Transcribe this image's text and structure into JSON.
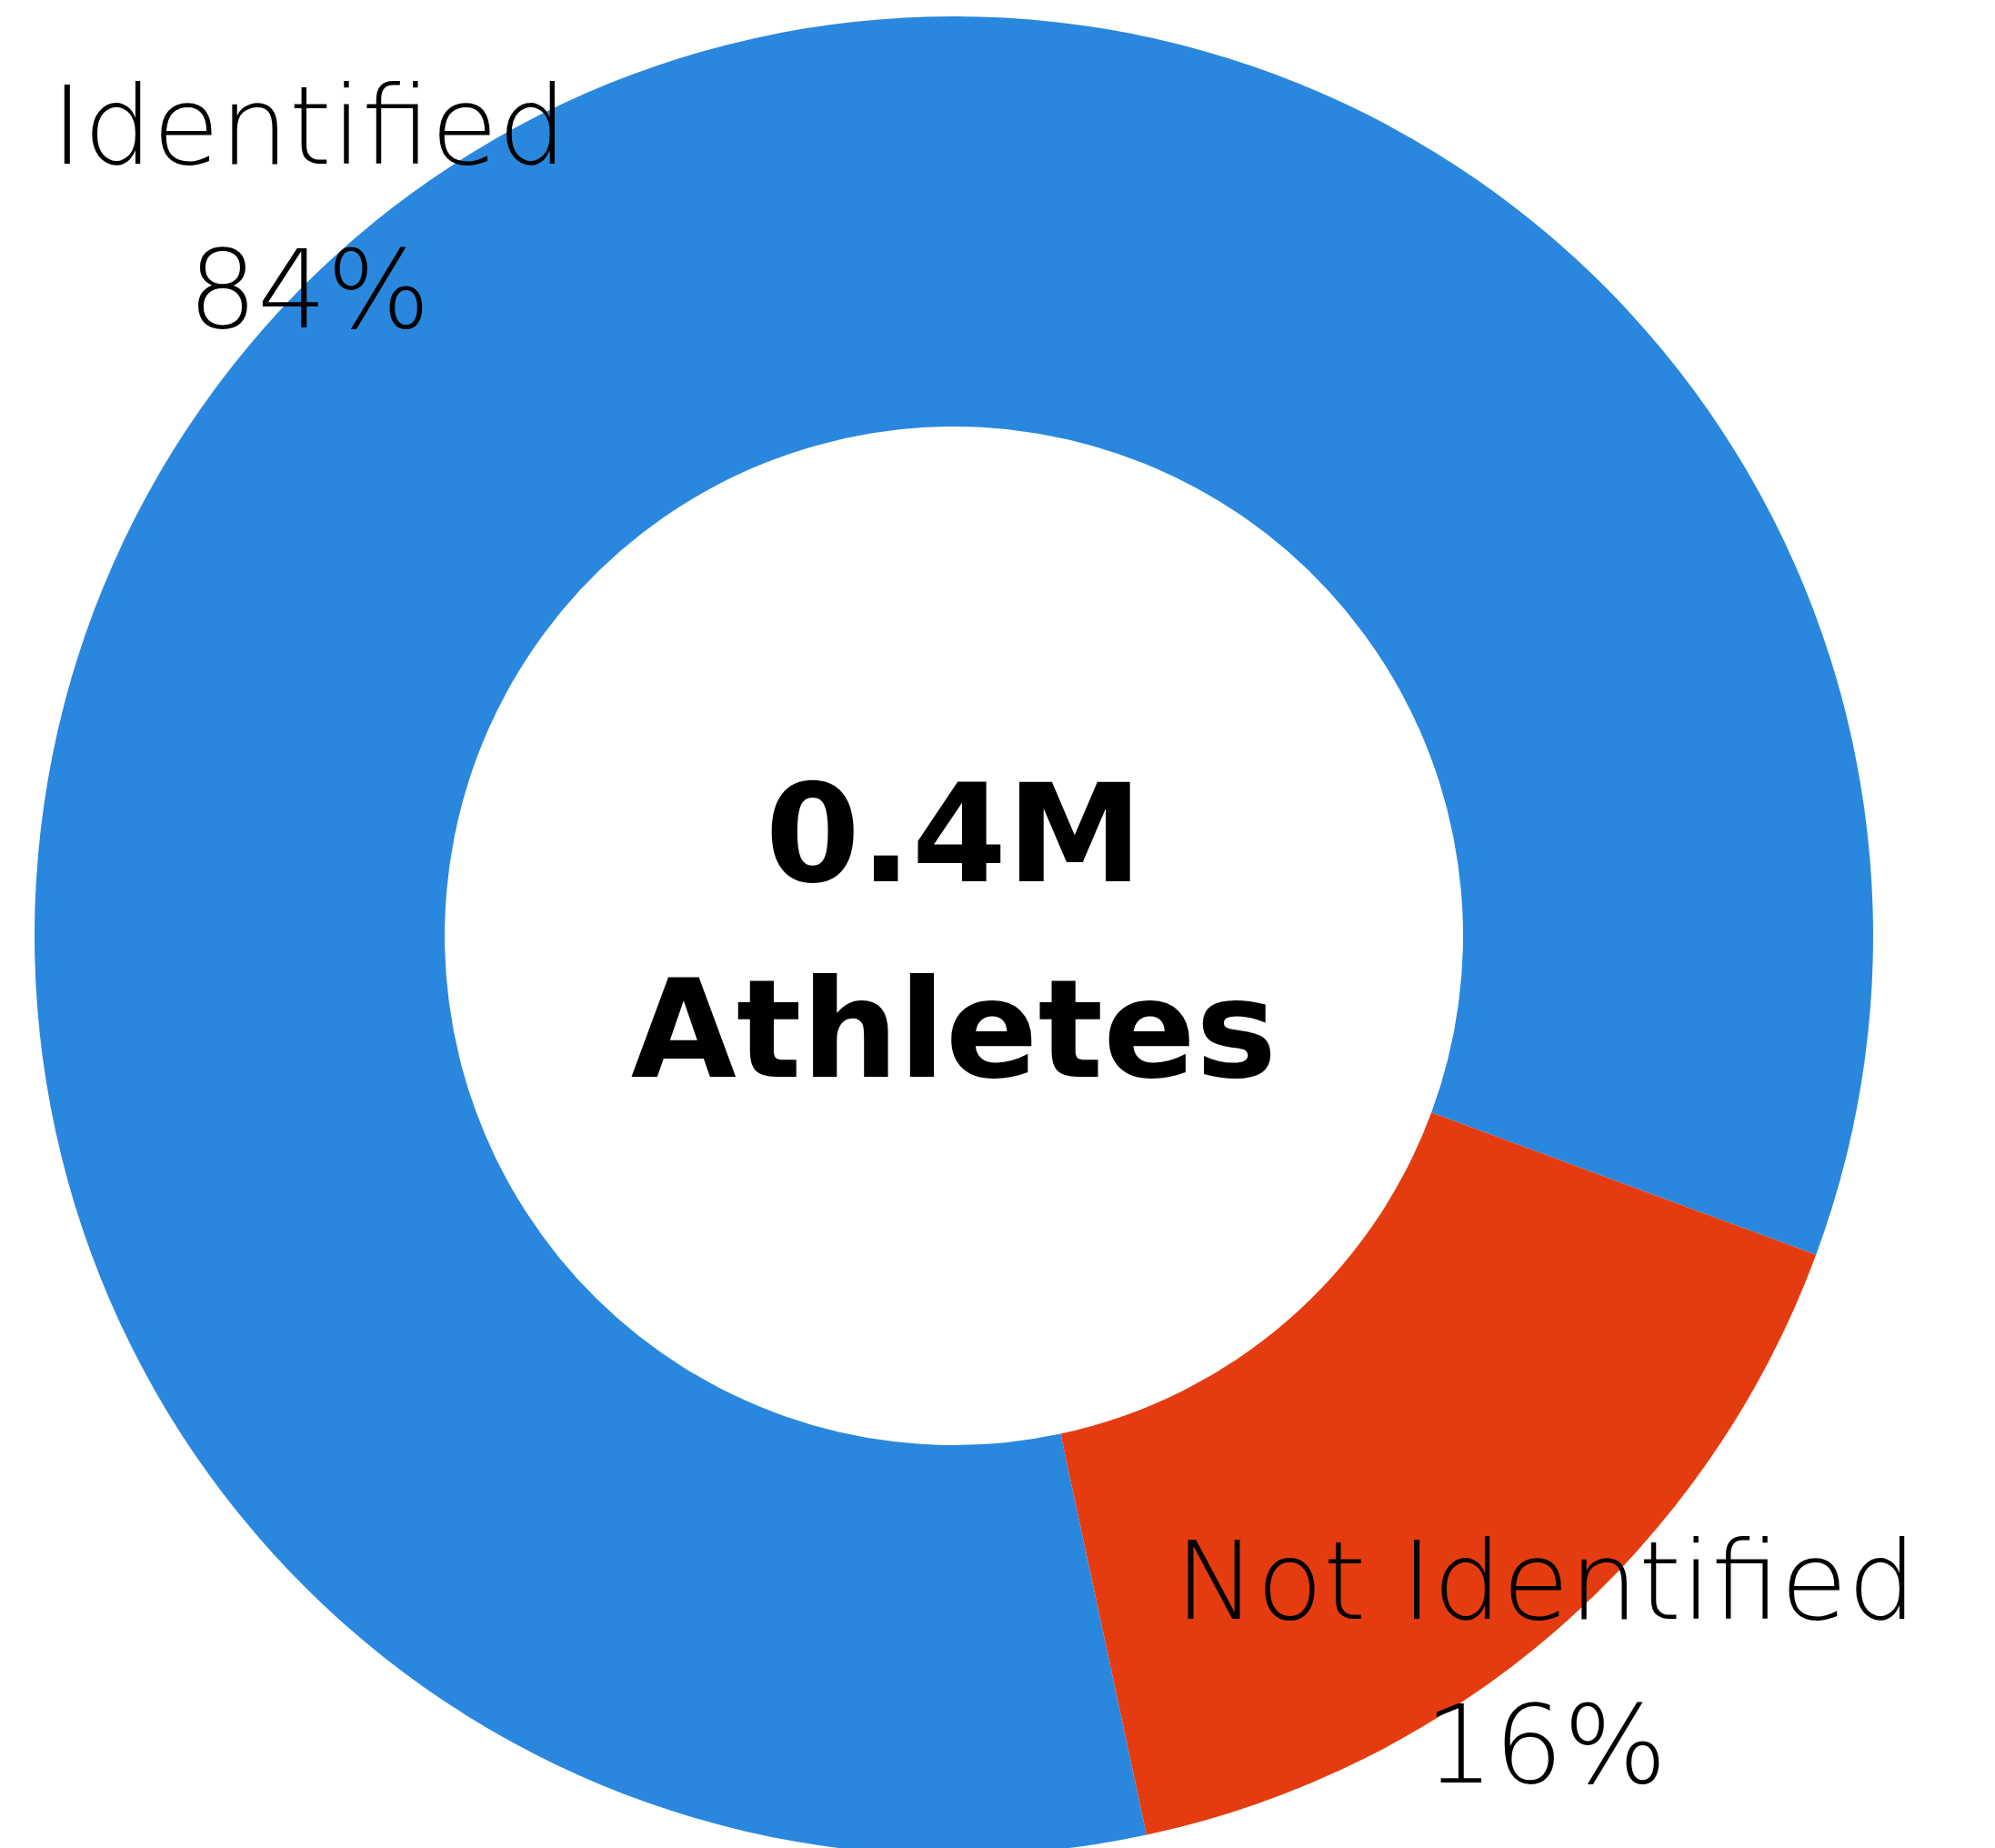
{
  "chart_data": {
    "type": "donut",
    "categories": [
      "Identified",
      "Not Identified"
    ],
    "values": [
      84,
      16
    ],
    "colors": [
      "#2a87de",
      "#e43c10"
    ],
    "value_labels": [
      "84%",
      "16%"
    ],
    "annotations": [
      "0.4M",
      "Athletes"
    ]
  }
}
